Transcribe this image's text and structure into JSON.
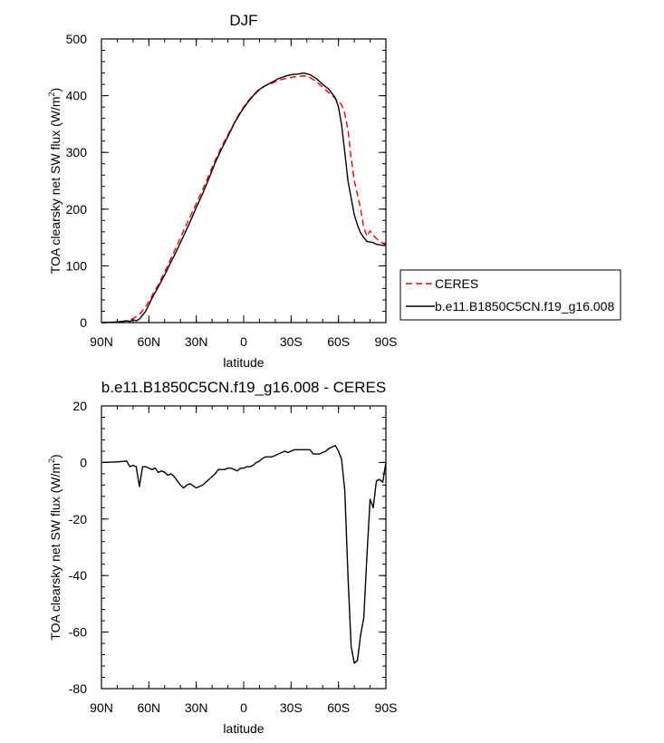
{
  "chart_data": [
    {
      "type": "line",
      "title": "DJF",
      "xlabel": "latitude",
      "ylabel": "TOA clearsky net SW flux (W/m",
      "ylabel_sup": "2",
      "ylabel_end": ")",
      "xlim": [
        90,
        -90
      ],
      "ylim": [
        0,
        500
      ],
      "xticks": [
        {
          "value": 90,
          "label": "90N"
        },
        {
          "value": 60,
          "label": "60N"
        },
        {
          "value": 30,
          "label": "30N"
        },
        {
          "value": 0,
          "label": "0"
        },
        {
          "value": -30,
          "label": "30S"
        },
        {
          "value": -60,
          "label": "60S"
        },
        {
          "value": -90,
          "label": "90S"
        }
      ],
      "yticks": [
        {
          "value": 0,
          "label": "0"
        },
        {
          "value": 100,
          "label": "100"
        },
        {
          "value": 200,
          "label": "200"
        },
        {
          "value": 300,
          "label": "300"
        },
        {
          "value": 400,
          "label": "400"
        },
        {
          "value": 500,
          "label": "500"
        }
      ],
      "legend_position": "right, outside plot",
      "series": [
        {
          "name": "CERES",
          "color": "#ff0000",
          "dash": "dashed",
          "x": [
            90,
            80,
            74,
            70,
            66,
            62,
            58,
            54,
            50,
            46,
            42,
            38,
            34,
            30,
            26,
            22,
            18,
            14,
            10,
            6,
            2,
            -2,
            -6,
            -10,
            -14,
            -18,
            -22,
            -26,
            -30,
            -34,
            -38,
            -42,
            -46,
            -50,
            -54,
            -58,
            -62,
            -64,
            -66,
            -68,
            -70,
            -72,
            -74,
            -76,
            -78,
            -80,
            -82,
            -84,
            -86,
            -88,
            -90
          ],
          "values": [
            0,
            1,
            3,
            7,
            14,
            28,
            47,
            67,
            89,
            113,
            137,
            162,
            186,
            210,
            234,
            260,
            286,
            310,
            331,
            352,
            372,
            388,
            401,
            412,
            418,
            422,
            427,
            430,
            432,
            434,
            435,
            432,
            425,
            415,
            405,
            395,
            384,
            368,
            340,
            290,
            250,
            226,
            200,
            168,
            152,
            162,
            154,
            148,
            143,
            140,
            137
          ]
        },
        {
          "name": "b.e11.B1850C5CN.f19_g16.008",
          "color": "#000000",
          "dash": "solid",
          "x": [
            90,
            80,
            74,
            72,
            70,
            68,
            66,
            62,
            58,
            54,
            50,
            46,
            42,
            38,
            34,
            30,
            26,
            22,
            18,
            14,
            10,
            6,
            2,
            -2,
            -6,
            -10,
            -14,
            -18,
            -22,
            -26,
            -30,
            -34,
            -38,
            -42,
            -46,
            -50,
            -54,
            -58,
            -60,
            -62,
            -64,
            -66,
            -68,
            -70,
            -72,
            -74,
            -76,
            -78,
            -80,
            -82,
            -84,
            -86,
            -88,
            -90
          ],
          "values": [
            0,
            1,
            3,
            2,
            5,
            3,
            6,
            20,
            43,
            63,
            84,
            107,
            129,
            153,
            177,
            203,
            227,
            254,
            282,
            306,
            328,
            351,
            370,
            386,
            400,
            411,
            418,
            424,
            430,
            434,
            437,
            438,
            440,
            437,
            430,
            420,
            411,
            396,
            380,
            348,
            300,
            250,
            220,
            190,
            172,
            158,
            150,
            143,
            142,
            141,
            138,
            137,
            136,
            136
          ]
        }
      ]
    },
    {
      "type": "line",
      "title": "b.e11.B1850C5CN.f19_g16.008 - CERES",
      "xlabel": "latitude",
      "ylabel": "TOA clearsky net SW flux (W/m",
      "ylabel_sup": "2",
      "ylabel_end": ")",
      "xlim": [
        90,
        -90
      ],
      "ylim": [
        -80,
        20
      ],
      "xticks": [
        {
          "value": 90,
          "label": "90N"
        },
        {
          "value": 60,
          "label": "60N"
        },
        {
          "value": 30,
          "label": "30N"
        },
        {
          "value": 0,
          "label": "0"
        },
        {
          "value": -30,
          "label": "30S"
        },
        {
          "value": -60,
          "label": "60S"
        },
        {
          "value": -90,
          "label": "90S"
        }
      ],
      "yticks": [
        {
          "value": -80,
          "label": "-80"
        },
        {
          "value": -60,
          "label": "-60"
        },
        {
          "value": -40,
          "label": "-40"
        },
        {
          "value": -20,
          "label": "-20"
        },
        {
          "value": 0,
          "label": "0"
        },
        {
          "value": 20,
          "label": "20"
        }
      ],
      "series": [
        {
          "name": "",
          "color": "#000000",
          "dash": "solid",
          "x": [
            90,
            80,
            74,
            72,
            70,
            68,
            66,
            64,
            62,
            60,
            58,
            56,
            54,
            52,
            50,
            48,
            46,
            44,
            42,
            40,
            38,
            36,
            34,
            30,
            26,
            22,
            20,
            18,
            16,
            14,
            12,
            10,
            8,
            6,
            4,
            2,
            0,
            -2,
            -4,
            -6,
            -8,
            -10,
            -12,
            -14,
            -16,
            -18,
            -20,
            -22,
            -24,
            -26,
            -28,
            -30,
            -32,
            -34,
            -36,
            -38,
            -40,
            -42,
            -44,
            -46,
            -48,
            -50,
            -52,
            -54,
            -56,
            -58,
            -60,
            -62,
            -64,
            -66,
            -68,
            -70,
            -72,
            -74,
            -76,
            -78,
            -80,
            -82,
            -84,
            -86,
            -88,
            -90
          ],
          "values": [
            0,
            0.2,
            0.5,
            -1.5,
            -1,
            -1.5,
            -8.5,
            -1.5,
            -1.5,
            -2,
            -2.5,
            -2,
            -3.5,
            -3,
            -3.5,
            -4.5,
            -4,
            -5,
            -6.5,
            -8,
            -9,
            -8,
            -7.5,
            -9,
            -8,
            -6,
            -5,
            -4,
            -2.5,
            -2.5,
            -2.5,
            -2,
            -2,
            -2.5,
            -3,
            -2,
            -2,
            -1.5,
            -1.5,
            -1,
            0,
            0.5,
            1.5,
            2,
            2,
            2,
            2.5,
            3,
            3.5,
            4,
            3.5,
            4,
            4.5,
            4.5,
            4.5,
            4.5,
            4.5,
            4.5,
            3,
            3,
            3,
            3.5,
            4,
            5,
            5.5,
            6,
            4,
            1,
            -10,
            -40,
            -65,
            -71,
            -70,
            -61,
            -55,
            -33,
            -13,
            -16,
            -6.5,
            -6,
            -7,
            0
          ]
        }
      ]
    }
  ]
}
